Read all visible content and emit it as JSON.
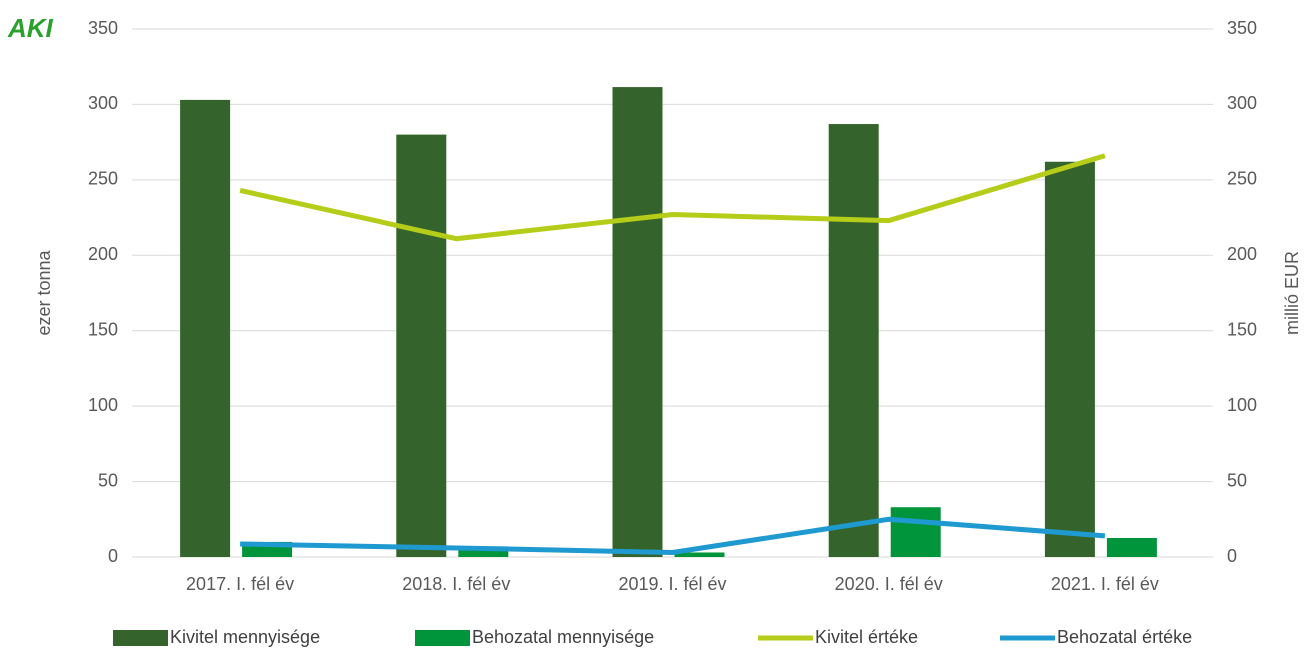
{
  "chart_data": {
    "type": "combo",
    "logo": "AKI",
    "categories": [
      "2017. I. fél év",
      "2018. I. fél év",
      "2019. I. fél év",
      "2020. I. fél év",
      "2021. I. fél év"
    ],
    "series": [
      {
        "name": "Kivitel mennyisége",
        "type": "bar",
        "color": "#34642c",
        "values": [
          303,
          280,
          311.5,
          287,
          262
        ]
      },
      {
        "name": "Behozatal mennyisége",
        "type": "bar",
        "color": "#00953a",
        "values": [
          10,
          7,
          3,
          33,
          12.6
        ]
      },
      {
        "name": "Kivitel értéke",
        "type": "line",
        "axis": "y2",
        "color": "#b5cc18",
        "values": [
          243,
          211,
          227,
          223,
          266
        ]
      },
      {
        "name": "Behozatal értéke",
        "type": "line",
        "axis": "y2",
        "color": "#1e9ad0",
        "values": [
          8.6,
          6,
          3,
          25,
          14
        ]
      }
    ],
    "ylabel": "ezer tonna",
    "y2label": "millió EUR",
    "ylim": [
      0,
      350
    ],
    "yticks": [
      0,
      50,
      100,
      150,
      200,
      250,
      300,
      350
    ],
    "y2lim": [
      0,
      350
    ],
    "y2ticks": [
      0,
      50,
      100,
      150,
      200,
      250,
      300,
      350
    ],
    "grid": true,
    "legend": "bottom"
  }
}
